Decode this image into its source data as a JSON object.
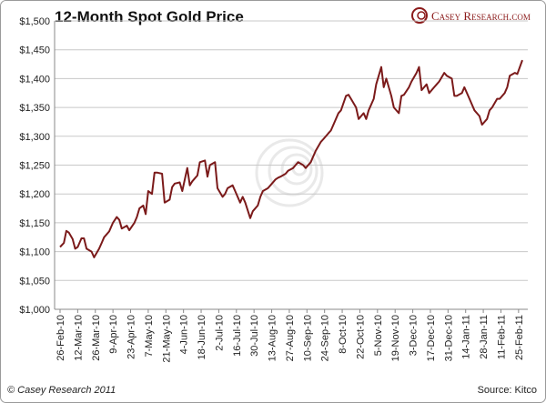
{
  "chart_data": {
    "type": "line",
    "title": "12-Month Spot Gold Price",
    "brand": "Casey Research.com",
    "footer_left": "© Casey Research 2011",
    "footer_right": "Source: Kitco",
    "color": "#7b1a1a",
    "grid": true,
    "ylim": [
      1000,
      1500
    ],
    "yticks": [
      {
        "value": 1000,
        "label": "$1,000"
      },
      {
        "value": 1050,
        "label": "$1,050"
      },
      {
        "value": 1100,
        "label": "$1,100"
      },
      {
        "value": 1150,
        "label": "$1,150"
      },
      {
        "value": 1200,
        "label": "$1,200"
      },
      {
        "value": 1250,
        "label": "$1,250"
      },
      {
        "value": 1300,
        "label": "$1,300"
      },
      {
        "value": 1350,
        "label": "$1,350"
      },
      {
        "value": 1400,
        "label": "$1,400"
      },
      {
        "value": 1450,
        "label": "$1,450"
      },
      {
        "value": 1500,
        "label": "$1,500"
      }
    ],
    "xticks": [
      "26-Feb-10",
      "12-Mar-10",
      "26-Mar-10",
      "9-Apr-10",
      "23-Apr-10",
      "7-May-10",
      "21-May-10",
      "4-Jun-10",
      "18-Jun-10",
      "2-Jul-10",
      "16-Jul-10",
      "30-Jul-10",
      "13-Aug-10",
      "27-Aug-10",
      "10-Sep-10",
      "24-Sep-10",
      "8-Oct-10",
      "22-Oct-10",
      "5-Nov-10",
      "19-Nov-10",
      "3-Dec-10",
      "17-Dec-10",
      "31-Dec-10",
      "14-Jan-11",
      "28-Jan-11",
      "11-Feb-11",
      "25-Feb-11"
    ],
    "x": [
      "26-Feb-10",
      "1-Mar-10",
      "3-Mar-10",
      "5-Mar-10",
      "8-Mar-10",
      "10-Mar-10",
      "12-Mar-10",
      "15-Mar-10",
      "17-Mar-10",
      "19-Mar-10",
      "23-Mar-10",
      "25-Mar-10",
      "29-Mar-10",
      "31-Mar-10",
      "2-Apr-10",
      "6-Apr-10",
      "9-Apr-10",
      "12-Apr-10",
      "14-Apr-10",
      "16-Apr-10",
      "20-Apr-10",
      "22-Apr-10",
      "26-Apr-10",
      "28-Apr-10",
      "30-Apr-10",
      "3-May-10",
      "5-May-10",
      "7-May-10",
      "10-May-10",
      "12-May-10",
      "14-May-10",
      "18-May-10",
      "20-May-10",
      "24-May-10",
      "26-May-10",
      "28-May-10",
      "1-Jun-10",
      "3-Jun-10",
      "7-Jun-10",
      "9-Jun-10",
      "11-Jun-10",
      "15-Jun-10",
      "17-Jun-10",
      "21-Jun-10",
      "23-Jun-10",
      "25-Jun-10",
      "29-Jun-10",
      "1-Jul-10",
      "5-Jul-10",
      "7-Jul-10",
      "9-Jul-10",
      "13-Jul-10",
      "15-Jul-10",
      "19-Jul-10",
      "21-Jul-10",
      "23-Jul-10",
      "27-Jul-10",
      "29-Jul-10",
      "2-Aug-10",
      "4-Aug-10",
      "6-Aug-10",
      "10-Aug-10",
      "12-Aug-10",
      "16-Aug-10",
      "18-Aug-10",
      "20-Aug-10",
      "24-Aug-10",
      "26-Aug-10",
      "30-Aug-10",
      "1-Sep-10",
      "3-Sep-10",
      "7-Sep-10",
      "9-Sep-10",
      "13-Sep-10",
      "15-Sep-10",
      "17-Sep-10",
      "21-Sep-10",
      "23-Sep-10",
      "27-Sep-10",
      "29-Sep-10",
      "1-Oct-10",
      "5-Oct-10",
      "7-Oct-10",
      "11-Oct-10",
      "13-Oct-10",
      "15-Oct-10",
      "19-Oct-10",
      "21-Oct-10",
      "25-Oct-10",
      "27-Oct-10",
      "29-Oct-10",
      "2-Nov-10",
      "4-Nov-10",
      "8-Nov-10",
      "10-Nov-10",
      "12-Nov-10",
      "16-Nov-10",
      "18-Nov-10",
      "22-Nov-10",
      "24-Nov-10",
      "26-Nov-10",
      "30-Nov-10",
      "2-Dec-10",
      "6-Dec-10",
      "8-Dec-10",
      "10-Dec-10",
      "14-Dec-10",
      "16-Dec-10",
      "20-Dec-10",
      "22-Dec-10",
      "24-Dec-10",
      "28-Dec-10",
      "30-Dec-10",
      "3-Jan-11",
      "5-Jan-11",
      "7-Jan-11",
      "11-Jan-11",
      "13-Jan-11",
      "17-Jan-11",
      "19-Jan-11",
      "21-Jan-11",
      "25-Jan-11",
      "27-Jan-11",
      "31-Jan-11",
      "2-Feb-11",
      "4-Feb-11",
      "8-Feb-11",
      "10-Feb-11",
      "14-Feb-11",
      "16-Feb-11",
      "18-Feb-11",
      "22-Feb-11",
      "24-Feb-11",
      "28-Feb-11"
    ],
    "values": [
      1108,
      1115,
      1136,
      1133,
      1122,
      1105,
      1108,
      1123,
      1123,
      1105,
      1100,
      1090,
      1105,
      1115,
      1125,
      1135,
      1150,
      1160,
      1155,
      1140,
      1145,
      1137,
      1150,
      1160,
      1175,
      1180,
      1165,
      1205,
      1200,
      1237,
      1237,
      1235,
      1185,
      1190,
      1212,
      1218,
      1220,
      1205,
      1245,
      1215,
      1222,
      1232,
      1255,
      1258,
      1230,
      1250,
      1255,
      1210,
      1195,
      1200,
      1210,
      1215,
      1205,
      1185,
      1195,
      1185,
      1158,
      1170,
      1180,
      1195,
      1205,
      1210,
      1215,
      1225,
      1228,
      1230,
      1235,
      1240,
      1245,
      1250,
      1255,
      1250,
      1245,
      1255,
      1265,
      1275,
      1290,
      1295,
      1305,
      1310,
      1320,
      1340,
      1345,
      1370,
      1372,
      1365,
      1350,
      1330,
      1340,
      1330,
      1345,
      1365,
      1390,
      1420,
      1385,
      1400,
      1370,
      1350,
      1340,
      1370,
      1372,
      1385,
      1395,
      1410,
      1420,
      1380,
      1390,
      1375,
      1385,
      1390,
      1395,
      1410,
      1405,
      1400,
      1370,
      1370,
      1375,
      1385,
      1365,
      1355,
      1345,
      1335,
      1320,
      1330,
      1345,
      1350,
      1365,
      1365,
      1375,
      1385,
      1405,
      1410,
      1408,
      1432
    ]
  }
}
